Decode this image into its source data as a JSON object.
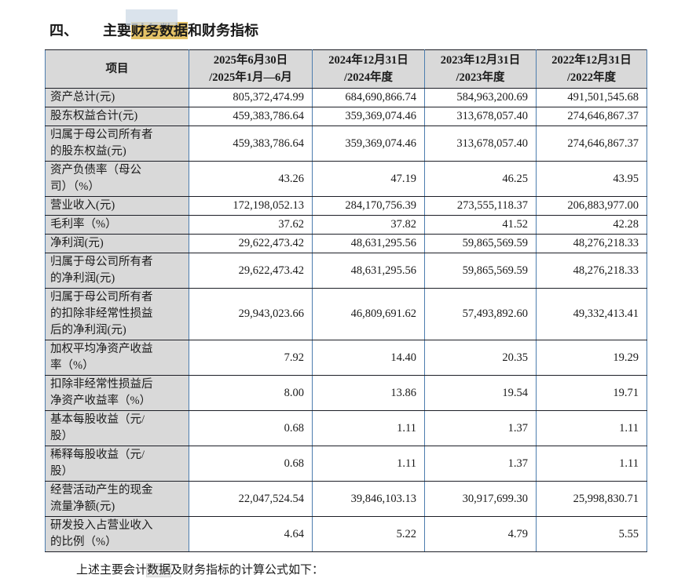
{
  "title": {
    "section_no": "四、",
    "text_before_highlight": "主要",
    "highlight": "财务数据",
    "text_after_highlight": "和财务指标",
    "highlight_color": "#e5c367"
  },
  "table": {
    "header": {
      "item": "项目",
      "cols": [
        "2025年6月30日\n/2025年1月—6月",
        "2024年12月31日\n/2024年度",
        "2023年12月31日\n/2023年度",
        "2022年12月31日\n/2022年度"
      ]
    },
    "rows": [
      {
        "label": "资产总计(元)",
        "values": [
          "805,372,474.99",
          "684,690,866.74",
          "584,963,200.69",
          "491,501,545.68"
        ]
      },
      {
        "label": "股东权益合计(元)",
        "values": [
          "459,383,786.64",
          "359,369,074.46",
          "313,678,057.40",
          "274,646,867.37"
        ]
      },
      {
        "label": "归属于母公司所有者\n的股东权益(元)",
        "values": [
          "459,383,786.64",
          "359,369,074.46",
          "313,678,057.40",
          "274,646,867.37"
        ]
      },
      {
        "label": "资产负债率（母公\n司）（%）",
        "values": [
          "43.26",
          "47.19",
          "46.25",
          "43.95"
        ]
      },
      {
        "label": "营业收入(元)",
        "values": [
          "172,198,052.13",
          "284,170,756.39",
          "273,555,118.37",
          "206,883,977.00"
        ]
      },
      {
        "label": "毛利率（%）",
        "values": [
          "37.62",
          "37.82",
          "41.52",
          "42.28"
        ]
      },
      {
        "label": "净利润(元)",
        "values": [
          "29,622,473.42",
          "48,631,295.56",
          "59,865,569.59",
          "48,276,218.33"
        ]
      },
      {
        "label": "归属于母公司所有者\n的净利润(元)",
        "values": [
          "29,622,473.42",
          "48,631,295.56",
          "59,865,569.59",
          "48,276,218.33"
        ]
      },
      {
        "label": "归属于母公司所有者\n的扣除非经常性损益\n后的净利润(元)",
        "values": [
          "29,943,023.66",
          "46,809,691.62",
          "57,493,892.60",
          "49,332,413.41"
        ]
      },
      {
        "label": "加权平均净资产收益\n率（%）",
        "values": [
          "7.92",
          "14.40",
          "20.35",
          "19.29"
        ]
      },
      {
        "label": "扣除非经常性损益后\n净资产收益率（%）",
        "values": [
          "8.00",
          "13.86",
          "19.54",
          "19.71"
        ]
      },
      {
        "label": "基本每股收益（元/\n股）",
        "values": [
          "0.68",
          "1.11",
          "1.37",
          "1.11"
        ]
      },
      {
        "label": "稀释每股收益（元/\n股）",
        "values": [
          "0.68",
          "1.11",
          "1.37",
          "1.11"
        ]
      },
      {
        "label": "经营活动产生的现金\n流量净额(元)",
        "values": [
          "22,047,524.54",
          "39,846,103.13",
          "30,917,699.30",
          "25,998,830.71"
        ]
      },
      {
        "label": "研发投入占营业收入\n的比例（%）",
        "values": [
          "4.64",
          "5.22",
          "4.79",
          "5.55"
        ]
      }
    ]
  },
  "footer_note": {
    "text_before_highlight": "上述主要会计",
    "highlight": "数据",
    "text_after_highlight": "及财务指标的计算公式如下："
  },
  "colors": {
    "header_cell_bg": "#d9d9d9",
    "row_border": "#1c1e26",
    "column_border": "#4d7dae",
    "active_match_highlight": "#e5c367",
    "inactive_match_highlight": "#ebebeb"
  }
}
